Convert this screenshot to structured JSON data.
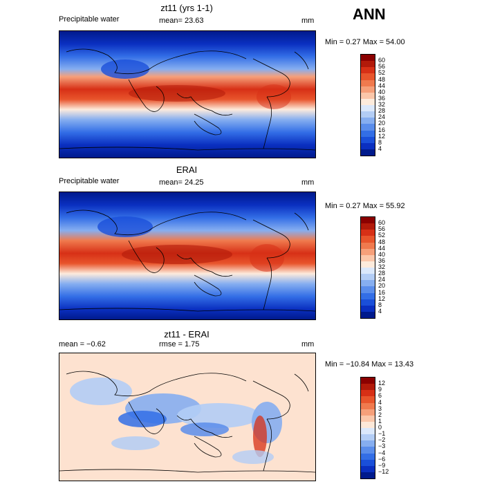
{
  "season": "ANN",
  "panels": [
    {
      "title": "zt11 (yrs 1-1)",
      "left_label": "Precipitable water",
      "center_label": "mean=  23.63",
      "units": "mm",
      "minmax": "Min =    0.27  Max =   54.00",
      "ticks": [
        "60",
        "56",
        "52",
        "48",
        "44",
        "40",
        "36",
        "32",
        "28",
        "24",
        "20",
        "16",
        "12",
        "8",
        "4"
      ],
      "colors": [
        "#8b0000",
        "#b21a0a",
        "#d73016",
        "#e8552c",
        "#f07a4e",
        "#f6a07a",
        "#fbc7aa",
        "#fdebdc",
        "#dbe8fb",
        "#b3cdf5",
        "#86aef0",
        "#5a8deb",
        "#336ee6",
        "#1a4fd9",
        "#0a2fc0",
        "#001a8c"
      ]
    },
    {
      "title": "ERAI",
      "left_label": "Precipitable water",
      "center_label": "mean=  24.25",
      "units": "mm",
      "minmax": "Min =    0.27  Max =   55.92",
      "ticks": [
        "60",
        "56",
        "52",
        "48",
        "44",
        "40",
        "36",
        "32",
        "28",
        "24",
        "20",
        "16",
        "12",
        "8",
        "4"
      ],
      "colors": [
        "#8b0000",
        "#b21a0a",
        "#d73016",
        "#e8552c",
        "#f07a4e",
        "#f6a07a",
        "#fbc7aa",
        "#fdebdc",
        "#dbe8fb",
        "#b3cdf5",
        "#86aef0",
        "#5a8deb",
        "#336ee6",
        "#1a4fd9",
        "#0a2fc0",
        "#001a8c"
      ]
    },
    {
      "title": "zt11 - ERAI",
      "left_label": "mean =   −0.62",
      "center_label": "rmse =    1.75",
      "units": "mm",
      "minmax": "Min = −10.84  Max =   13.43",
      "ticks": [
        "12",
        "9",
        "6",
        "4",
        "3",
        "2",
        "1",
        "0",
        "−1",
        "−2",
        "−3",
        "−4",
        "−6",
        "−9",
        "−12"
      ],
      "colors": [
        "#8b0000",
        "#b21a0a",
        "#d73016",
        "#e8552c",
        "#f07a4e",
        "#f6a07a",
        "#fbc7aa",
        "#fde8d8",
        "#dbe8fb",
        "#b3cdf5",
        "#86aef0",
        "#5a8deb",
        "#336ee6",
        "#1a4fd9",
        "#0a2fc0",
        "#001a8c"
      ]
    }
  ]
}
